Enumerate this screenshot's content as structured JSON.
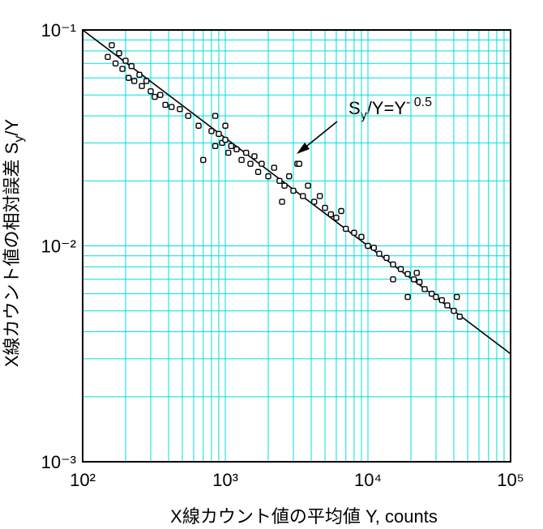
{
  "chart_data": {
    "type": "scatter",
    "x_label": "X線カウント値の平均値  Y, counts",
    "y_label_parts": [
      "X線カウント値の相対誤差 S",
      "y",
      "/Y"
    ],
    "annotation_parts": [
      "S",
      "y",
      "/Y=Y",
      "- 0.5"
    ],
    "x": [
      150,
      160,
      170,
      180,
      190,
      200,
      210,
      220,
      230,
      250,
      260,
      280,
      300,
      320,
      350,
      380,
      420,
      480,
      550,
      650,
      800,
      850,
      900,
      950,
      1000,
      1050,
      1100,
      1200,
      1300,
      1400,
      1500,
      1600,
      1700,
      1800,
      2000,
      2200,
      2400,
      2600,
      2800,
      3000,
      3200,
      3500,
      3800,
      4200,
      4600,
      5000,
      5500,
      6000,
      6500,
      7000,
      8000,
      9000,
      10000,
      11000,
      12000,
      13500,
      15000,
      17000,
      19000,
      21000,
      23000,
      25000,
      28000,
      30000,
      33000,
      36000,
      40000,
      42000,
      44000,
      1000,
      700,
      2500,
      3300,
      850,
      15000,
      22000,
      19000
    ],
    "values": [
      0.075,
      0.085,
      0.07,
      0.078,
      0.066,
      0.072,
      0.06,
      0.068,
      0.058,
      0.062,
      0.055,
      0.058,
      0.052,
      0.049,
      0.05,
      0.045,
      0.044,
      0.043,
      0.04,
      0.036,
      0.034,
      0.029,
      0.033,
      0.03,
      0.031,
      0.027,
      0.029,
      0.028,
      0.025,
      0.027,
      0.024,
      0.026,
      0.022,
      0.024,
      0.021,
      0.023,
      0.02,
      0.019,
      0.021,
      0.018,
      0.024,
      0.017,
      0.019,
      0.016,
      0.017,
      0.015,
      0.014,
      0.0135,
      0.0145,
      0.012,
      0.0115,
      0.011,
      0.01,
      0.0098,
      0.0092,
      0.0088,
      0.0082,
      0.0078,
      0.0074,
      0.007,
      0.0068,
      0.0063,
      0.006,
      0.0058,
      0.0056,
      0.0053,
      0.005,
      0.0058,
      0.0047,
      0.036,
      0.025,
      0.016,
      0.024,
      0.04,
      0.007,
      0.0075,
      0.0058
    ],
    "marker_color": "#000000",
    "line": {
      "x": [
        100,
        100000
      ],
      "values": [
        0.1,
        0.003162
      ],
      "color": "#000000"
    },
    "xscale": "log",
    "yscale": "log",
    "xlim": [
      100,
      100000
    ],
    "ylim": [
      0.001,
      0.1
    ],
    "xticks": [
      {
        "value": 100,
        "label": "10²"
      },
      {
        "value": 1000,
        "label": "10³"
      },
      {
        "value": 10000,
        "label": "10⁴"
      },
      {
        "value": 100000,
        "label": "10⁵"
      }
    ],
    "yticks": [
      {
        "value": 0.001,
        "label": "10⁻³"
      },
      {
        "value": 0.01,
        "label": "10⁻²"
      },
      {
        "value": 0.1,
        "label": "10⁻¹"
      }
    ],
    "xminorticks": [
      200,
      300,
      400,
      500,
      600,
      700,
      800,
      900,
      2000,
      3000,
      4000,
      5000,
      6000,
      7000,
      8000,
      9000,
      20000,
      30000,
      40000,
      50000,
      60000,
      70000,
      80000,
      90000
    ],
    "yminorticks": [
      0.002,
      0.003,
      0.004,
      0.005,
      0.006,
      0.007,
      0.008,
      0.009,
      0.02,
      0.03,
      0.04,
      0.05,
      0.06,
      0.07,
      0.08,
      0.09
    ],
    "grid": true,
    "grid_color": "#00dede"
  }
}
